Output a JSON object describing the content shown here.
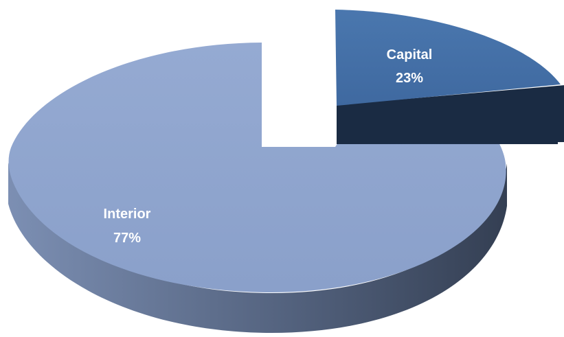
{
  "chart_data": {
    "type": "pie",
    "style": "3d-exploded",
    "slices": [
      {
        "label": "Interior",
        "value": 77,
        "value_label": "77%",
        "color": "#90a6cf",
        "side_color_dark": "#3b465c",
        "side_color_light": "#7c8fb3"
      },
      {
        "label": "Capital",
        "value": 23,
        "value_label": "23%",
        "color": "#4470a8",
        "side_color_dark": "#1c2d45",
        "side_color_light": "#1f3350"
      }
    ],
    "exploded": "Capital",
    "legend": "none",
    "title": ""
  }
}
